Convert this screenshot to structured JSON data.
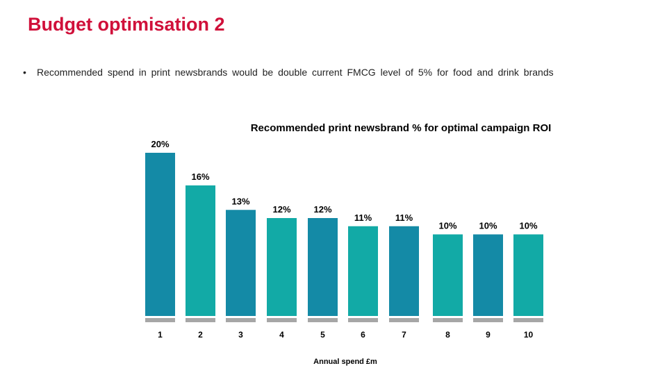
{
  "slide": {
    "title": "Budget optimisation 2",
    "bullet": "Recommended  spend in print newsbrands would be double current FMCG level of 5% for food and drink brands"
  },
  "chart_data": {
    "type": "bar",
    "title": "Recommended print newsbrand % for optimal campaign ROI",
    "xlabel": "Annual spend £m",
    "ylabel": "",
    "categories": [
      "1",
      "2",
      "3",
      "4",
      "5",
      "6",
      "7",
      "8",
      "9",
      "10"
    ],
    "values": [
      20,
      16,
      13,
      12,
      12,
      11,
      11,
      10,
      10,
      10
    ],
    "data_labels": [
      "20%",
      "16%",
      "13%",
      "12%",
      "12%",
      "11%",
      "11%",
      "10%",
      "10%",
      "10%"
    ],
    "ylim": [
      0,
      20
    ],
    "grid": false,
    "legend": "none",
    "colors": {
      "dark": "#148aa6",
      "light": "#12aaa6",
      "base": "#a6a6a6",
      "text": "#000000"
    },
    "bar_color_pattern": [
      "dark",
      "light",
      "dark",
      "light",
      "dark",
      "light",
      "dark",
      "light",
      "dark",
      "light"
    ]
  }
}
